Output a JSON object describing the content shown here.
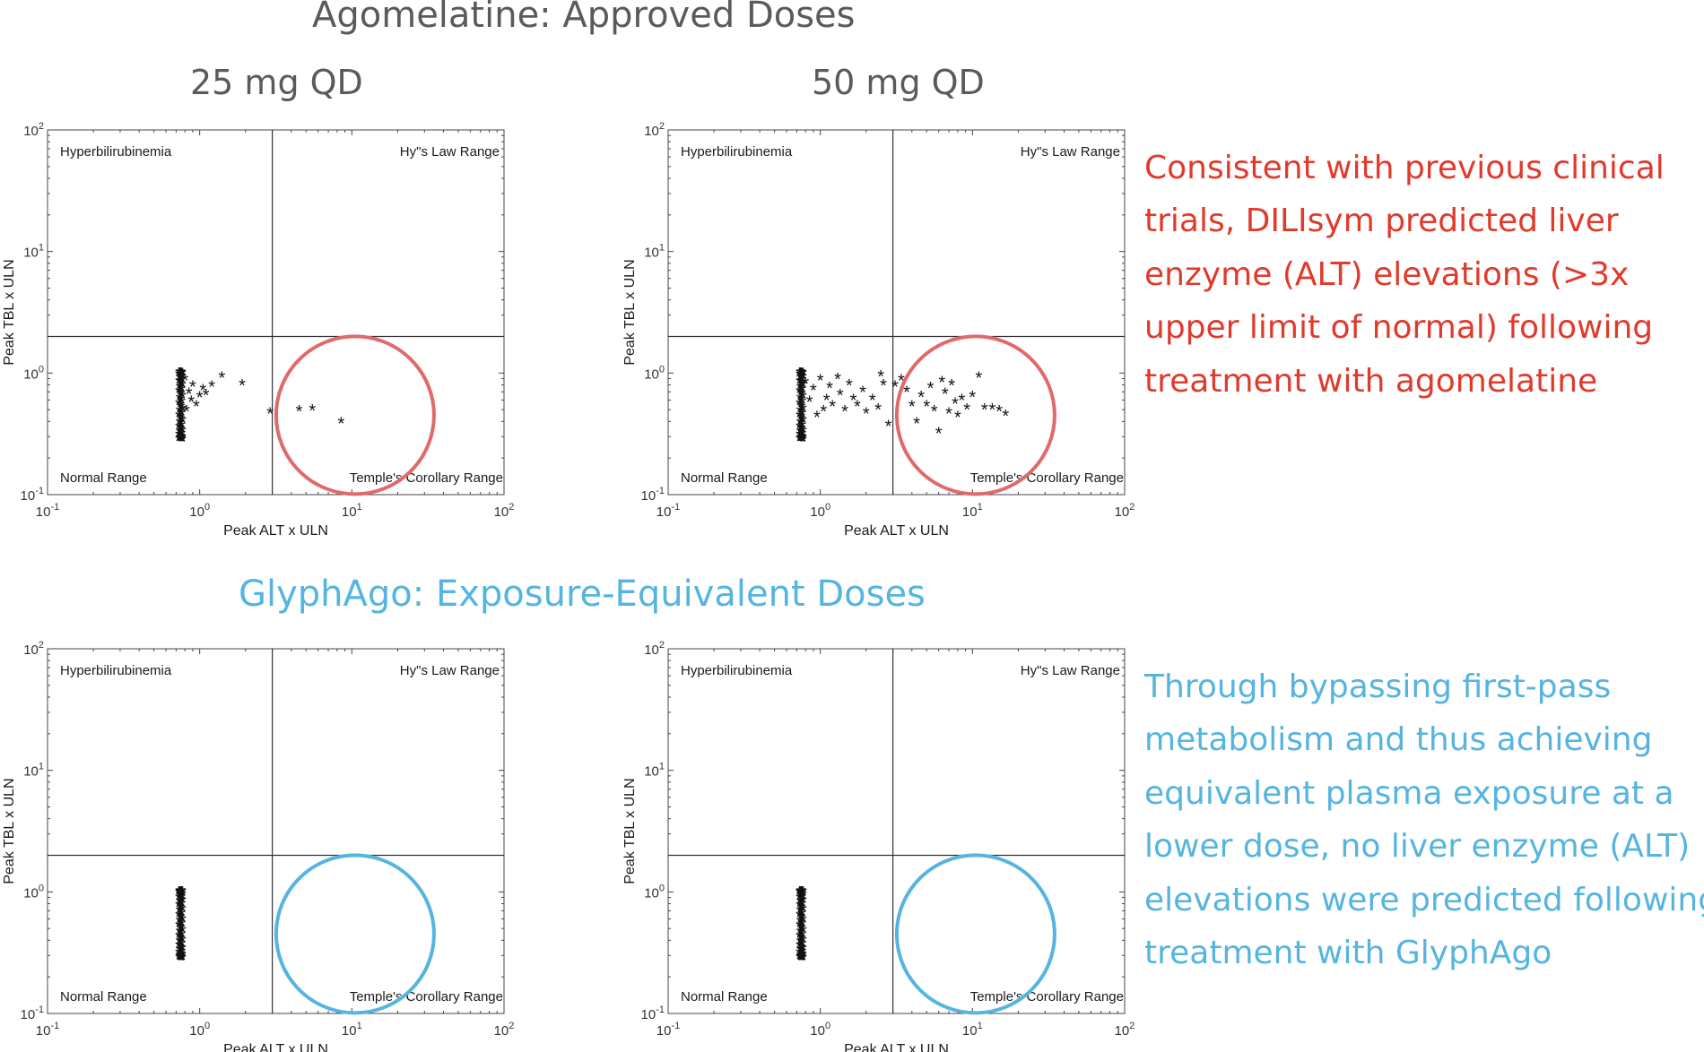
{
  "headings": {
    "top_section": "Agomelatine: Approved Doses",
    "bottom_section": "GlyphAgo: Exposure-Equivalent Doses",
    "left_column": "25 mg QD",
    "right_column": "50 mg QD"
  },
  "notes": {
    "top_lines": [
      "Consistent with previous clinical",
      "trials, DILIsym predicted liver",
      "enzyme (ALT) elevations (>3x",
      "upper limit of normal) following",
      "treatment with agomelatine"
    ],
    "bottom_lines": [
      "Through bypassing first-pass",
      "metabolism and thus achieving",
      "equivalent plasma exposure at a",
      "lower dose, no liver enzyme (ALT)",
      "elevations were predicted following",
      "treatment with GlyphAgo"
    ]
  },
  "colors": {
    "top_heading": "#5a5a5a",
    "top_note": "#e03a2c",
    "top_circle": "#e06a6a",
    "bottom": "#55b4e0"
  },
  "chart_data": [
    {
      "type": "scatter",
      "panel": "agomelatine-25mg",
      "xlabel": "Peak ALT x ULN",
      "ylabel": "Peak TBL x ULN",
      "xscale": "log",
      "yscale": "log",
      "xlim": [
        0.1,
        100
      ],
      "ylim": [
        0.1,
        100
      ],
      "xticks": [
        "10-1",
        "100",
        "101",
        "102"
      ],
      "yticks": [
        "10-1",
        "100",
        "101",
        "102"
      ],
      "thresholds": {
        "x": 3,
        "y": 2
      },
      "quadrant_labels": {
        "top_left": "Hyperbilirubinemia",
        "top_right": "Hy\"s Law Range",
        "bottom_left": "Normal Range",
        "bottom_right": "Temple's Corollary Range"
      },
      "highlight_circle": {
        "center_x": 10.5,
        "center_y": 0.45,
        "color": "#e06a6a"
      },
      "cluster": {
        "x": 0.75,
        "y_min": 0.28,
        "y_max": 1.0,
        "count": 60
      },
      "points": [
        [
          0.8,
          0.9
        ],
        [
          0.85,
          0.7
        ],
        [
          0.9,
          0.8
        ],
        [
          0.95,
          0.55
        ],
        [
          1.0,
          0.65
        ],
        [
          1.05,
          0.75
        ],
        [
          1.1,
          0.68
        ],
        [
          1.2,
          0.8
        ],
        [
          1.4,
          0.95
        ],
        [
          1.9,
          0.82
        ],
        [
          0.82,
          0.5
        ],
        [
          0.88,
          0.6
        ],
        [
          2.9,
          0.48
        ],
        [
          4.5,
          0.5
        ],
        [
          5.5,
          0.51
        ],
        [
          8.5,
          0.4
        ]
      ]
    },
    {
      "type": "scatter",
      "panel": "agomelatine-50mg",
      "xlabel": "Peak ALT x ULN",
      "ylabel": "Peak TBL x ULN",
      "xscale": "log",
      "yscale": "log",
      "xlim": [
        0.1,
        100
      ],
      "ylim": [
        0.1,
        100
      ],
      "xticks": [
        "10-1",
        "100",
        "101",
        "102"
      ],
      "yticks": [
        "10-1",
        "100",
        "101",
        "102"
      ],
      "thresholds": {
        "x": 3,
        "y": 2
      },
      "quadrant_labels": {
        "top_left": "Hyperbilirubinemia",
        "top_right": "Hy\"s Law Range",
        "bottom_left": "Normal Range",
        "bottom_right": "Temple's Corollary Range"
      },
      "highlight_circle": {
        "center_x": 10.5,
        "center_y": 0.45,
        "color": "#e06a6a"
      },
      "cluster": {
        "x": 0.75,
        "y_min": 0.28,
        "y_max": 1.0,
        "count": 60
      },
      "points": [
        [
          0.8,
          0.85
        ],
        [
          0.85,
          0.6
        ],
        [
          0.9,
          0.75
        ],
        [
          0.95,
          0.45
        ],
        [
          1.0,
          0.9
        ],
        [
          1.05,
          0.5
        ],
        [
          1.1,
          0.62
        ],
        [
          1.15,
          0.78
        ],
        [
          1.2,
          0.55
        ],
        [
          1.3,
          0.92
        ],
        [
          1.35,
          0.68
        ],
        [
          1.45,
          0.5
        ],
        [
          1.55,
          0.82
        ],
        [
          1.65,
          0.62
        ],
        [
          1.75,
          0.55
        ],
        [
          1.9,
          0.72
        ],
        [
          2.0,
          0.48
        ],
        [
          2.2,
          0.62
        ],
        [
          2.4,
          0.52
        ],
        [
          2.5,
          0.97
        ],
        [
          2.6,
          0.82
        ],
        [
          2.8,
          0.38
        ],
        [
          3.1,
          0.8
        ],
        [
          3.4,
          0.9
        ],
        [
          3.7,
          0.72
        ],
        [
          4.0,
          0.55
        ],
        [
          4.3,
          0.4
        ],
        [
          4.6,
          0.66
        ],
        [
          5.0,
          0.55
        ],
        [
          5.3,
          0.78
        ],
        [
          5.6,
          0.5
        ],
        [
          6.0,
          0.33
        ],
        [
          6.3,
          0.87
        ],
        [
          6.6,
          0.7
        ],
        [
          7.0,
          0.48
        ],
        [
          7.3,
          0.82
        ],
        [
          7.7,
          0.58
        ],
        [
          8.0,
          0.45
        ],
        [
          8.5,
          0.62
        ],
        [
          9.2,
          0.52
        ],
        [
          10.0,
          0.66
        ],
        [
          11.0,
          0.95
        ],
        [
          12.0,
          0.52
        ],
        [
          13.5,
          0.52
        ],
        [
          15.0,
          0.5
        ],
        [
          16.5,
          0.46
        ]
      ]
    },
    {
      "type": "scatter",
      "panel": "glyphago-left",
      "xlabel": "Peak ALT x ULN",
      "ylabel": "Peak TBL x ULN",
      "xscale": "log",
      "yscale": "log",
      "xlim": [
        0.1,
        100
      ],
      "ylim": [
        0.1,
        100
      ],
      "xticks": [
        "10-1",
        "100",
        "101",
        "102"
      ],
      "yticks": [
        "10-1",
        "100",
        "101",
        "102"
      ],
      "thresholds": {
        "x": 3,
        "y": 2
      },
      "quadrant_labels": {
        "top_left": "Hyperbilirubinemia",
        "top_right": "Hy\"s Law Range",
        "bottom_left": "Normal Range",
        "bottom_right": "Temple's Corollary Range"
      },
      "highlight_circle": {
        "center_x": 10.5,
        "center_y": 0.45,
        "color": "#55b4e0"
      },
      "cluster": {
        "x": 0.75,
        "y_min": 0.28,
        "y_max": 1.0,
        "count": 70
      },
      "points": []
    },
    {
      "type": "scatter",
      "panel": "glyphago-right",
      "xlabel": "Peak ALT x ULN",
      "ylabel": "Peak TBL x ULN",
      "xscale": "log",
      "yscale": "log",
      "xlim": [
        0.1,
        100
      ],
      "ylim": [
        0.1,
        100
      ],
      "xticks": [
        "10-1",
        "100",
        "101",
        "102"
      ],
      "yticks": [
        "10-1",
        "100",
        "101",
        "102"
      ],
      "thresholds": {
        "x": 3,
        "y": 2
      },
      "quadrant_labels": {
        "top_left": "Hyperbilirubinemia",
        "top_right": "Hy\"s Law Range",
        "bottom_left": "Normal Range",
        "bottom_right": "Temple's Corollary Range"
      },
      "highlight_circle": {
        "center_x": 10.5,
        "center_y": 0.45,
        "color": "#55b4e0"
      },
      "cluster": {
        "x": 0.75,
        "y_min": 0.28,
        "y_max": 1.0,
        "count": 70
      },
      "points": []
    }
  ]
}
